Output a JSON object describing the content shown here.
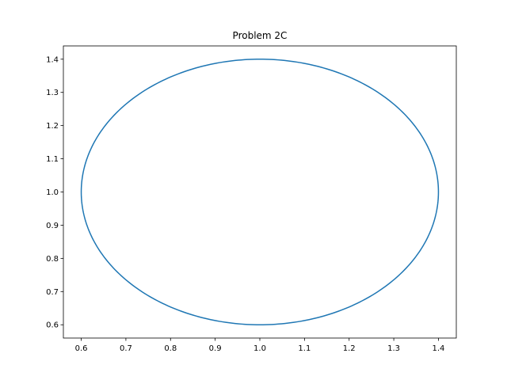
{
  "chart_data": {
    "type": "line",
    "title": "Problem 2C",
    "xlabel": "",
    "ylabel": "",
    "xlim": [
      0.56,
      1.44
    ],
    "ylim": [
      0.56,
      1.44
    ],
    "x_ticks": [
      "0.6",
      "0.7",
      "0.8",
      "0.9",
      "1.0",
      "1.1",
      "1.2",
      "1.3",
      "1.4"
    ],
    "y_ticks": [
      "0.6",
      "0.7",
      "0.8",
      "0.9",
      "1.0",
      "1.1",
      "1.2",
      "1.3",
      "1.4"
    ],
    "grid": false,
    "series": [
      {
        "shape": "circle",
        "center": [
          1.0,
          1.0
        ],
        "radius": 0.4,
        "color": "#1f77b4"
      }
    ]
  }
}
